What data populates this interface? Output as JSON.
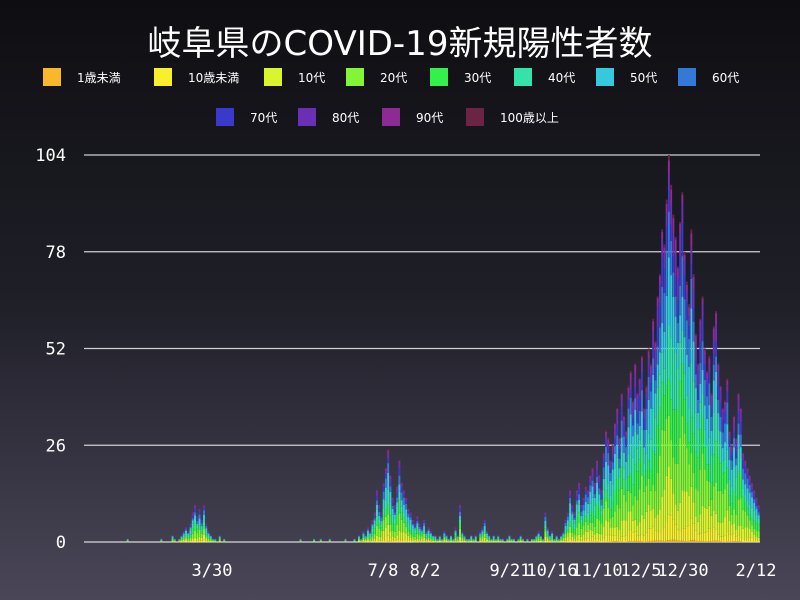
{
  "title": "岐阜県のCOVID-19新規陽性者数",
  "chart_data": {
    "type": "bar",
    "stacked": true,
    "x_tick_labels": [
      "3/30",
      "7/8",
      "8/2",
      "9/21",
      "10/16",
      "11/10",
      "12/5",
      "12/30",
      "2/12"
    ],
    "y_tick_labels": [
      "0",
      "26",
      "52",
      "78",
      "104"
    ],
    "ylim": [
      0,
      104
    ],
    "grid": true,
    "legend_position": "top",
    "series": [
      {
        "name": "1歳未満",
        "color": "#f9b72a"
      },
      {
        "name": "10歳未満",
        "color": "#f7f02a"
      },
      {
        "name": "10代",
        "color": "#d9f52e"
      },
      {
        "name": "20代",
        "color": "#82f536"
      },
      {
        "name": "30代",
        "color": "#34ef4c"
      },
      {
        "name": "40代",
        "color": "#33e3a9"
      },
      {
        "name": "50代",
        "color": "#35c9dd"
      },
      {
        "name": "60代",
        "color": "#3479d8"
      },
      {
        "name": "70代",
        "color": "#3a39cc"
      },
      {
        "name": "80代",
        "color": "#6b2fb5"
      },
      {
        "name": "90代",
        "color": "#8e2a96"
      },
      {
        "name": "100歳以上",
        "color": "#6b2446"
      }
    ],
    "daily_totals": [
      0,
      0,
      0,
      0,
      0,
      0,
      0,
      0,
      0,
      0,
      0,
      0,
      0,
      0,
      0,
      0,
      0,
      0,
      0,
      1,
      0,
      0,
      0,
      0,
      0,
      0,
      0,
      0,
      0,
      0,
      0,
      0,
      0,
      0,
      1,
      0,
      0,
      0,
      0,
      2,
      1,
      0,
      1,
      2,
      3,
      4,
      3,
      5,
      8,
      10,
      7,
      9,
      6,
      10,
      5,
      3,
      2,
      1,
      1,
      0,
      2,
      0,
      1,
      0,
      0,
      0,
      0,
      0,
      0,
      0,
      0,
      0,
      0,
      0,
      0,
      0,
      0,
      0,
      0,
      0,
      0,
      0,
      0,
      0,
      0,
      0,
      0,
      0,
      0,
      0,
      0,
      0,
      0,
      0,
      0,
      0,
      1,
      0,
      0,
      0,
      0,
      0,
      1,
      0,
      0,
      1,
      0,
      0,
      0,
      1,
      0,
      0,
      0,
      0,
      0,
      0,
      1,
      0,
      0,
      0,
      1,
      0,
      2,
      1,
      3,
      2,
      4,
      3,
      6,
      8,
      14,
      10,
      8,
      16,
      20,
      25,
      18,
      12,
      10,
      15,
      22,
      16,
      14,
      12,
      9,
      8,
      6,
      5,
      7,
      5,
      4,
      6,
      3,
      4,
      3,
      2,
      2,
      1,
      2,
      1,
      3,
      2,
      1,
      2,
      1,
      4,
      2,
      10,
      3,
      2,
      1,
      1,
      2,
      1,
      2,
      0,
      3,
      4,
      6,
      3,
      2,
      1,
      2,
      1,
      2,
      1,
      1,
      0,
      1,
      2,
      1,
      1,
      0,
      1,
      2,
      1,
      0,
      1,
      0,
      1,
      1,
      2,
      3,
      2,
      1,
      8,
      4,
      2,
      3,
      1,
      2,
      1,
      2,
      3,
      6,
      8,
      14,
      10,
      8,
      14,
      16,
      10,
      12,
      15,
      14,
      18,
      20,
      16,
      22,
      18,
      14,
      24,
      30,
      28,
      22,
      26,
      32,
      36,
      28,
      40,
      34,
      30,
      42,
      46,
      38,
      48,
      40,
      44,
      50,
      36,
      42,
      52,
      48,
      60,
      54,
      66,
      72,
      84,
      80,
      92,
      104,
      96,
      88,
      82,
      74,
      86,
      94,
      78,
      70,
      64,
      84,
      72,
      56,
      48,
      60,
      66,
      52,
      46,
      50,
      40,
      58,
      62,
      48,
      42,
      36,
      38,
      44,
      30,
      26,
      34,
      28,
      40,
      36,
      24,
      22,
      20,
      18,
      16,
      14,
      12,
      10
    ]
  }
}
